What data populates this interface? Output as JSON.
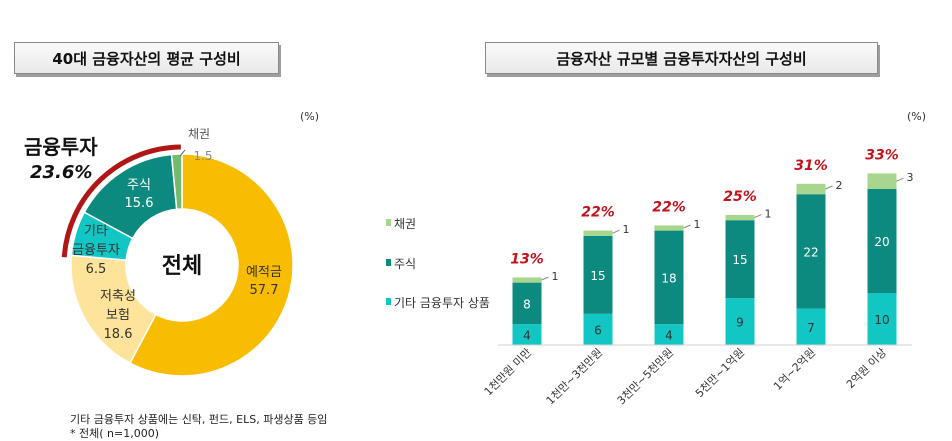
{
  "left_panel": {
    "title": "40대 금융자산의 평균 구성비",
    "unit": "(%)",
    "center_label": "전체",
    "highlight_label": "금융투자",
    "highlight_value": "23.6%",
    "notes": [
      "기타 금융투자 상품에는 신탁, 펀드, ELS, 파생상품 등임",
      "* 전체( n=1,000)"
    ]
  },
  "right_panel": {
    "title": "금융자산 규모별 금융투자자산의 구성비",
    "unit": "(%)"
  },
  "colors": {
    "deposit": "#f8bd00",
    "insurance": "#fde49a",
    "other_invest": "#12c7c3",
    "stock": "#0d8a80",
    "bond": "#74b96e",
    "bond_light": "#a9d68f",
    "highlight": "#b01616"
  },
  "chart_data": [
    {
      "type": "pie",
      "title": "40대 금융자산의 평균 구성비",
      "center_label": "전체",
      "unit": "(%)",
      "slices": [
        {
          "label": "예적금",
          "value": 57.7,
          "value_label": "57.7",
          "color": "#f8bd00"
        },
        {
          "label": "저축성 보험",
          "value": 18.6,
          "value_label": "18.6",
          "color": "#fde49a"
        },
        {
          "label": "기타 금융투자",
          "value": 6.5,
          "value_label": "6.5",
          "color": "#12c7c3"
        },
        {
          "label": "주식",
          "value": 15.6,
          "value_label": "15.6",
          "color": "#0d8a80"
        },
        {
          "label": "채권",
          "value": 1.5,
          "value_label": "1.5",
          "color": "#74b96e"
        }
      ]
    },
    {
      "type": "bar",
      "stacked": true,
      "title": "금융자산 규모별 금융투자자산의 구성비",
      "unit": "(%)",
      "categories": [
        "1천만원 미만",
        "1천만~3천만원",
        "3천만~5천만원",
        "5천만~1억원",
        "1억~2억원",
        "2억원 이상"
      ],
      "series": [
        {
          "name": "기타 금융투자 상품",
          "values": [
            4,
            6,
            4,
            9,
            7,
            10
          ],
          "color": "#12c7c3"
        },
        {
          "name": "주식",
          "values": [
            8,
            15,
            18,
            15,
            22,
            20
          ],
          "color": "#0d8a80"
        },
        {
          "name": "채권",
          "values": [
            1,
            1,
            1,
            1,
            2,
            3
          ],
          "color": "#a9d68f"
        }
      ],
      "totals": [
        "13%",
        "22%",
        "22%",
        "25%",
        "31%",
        "33%"
      ],
      "legend_position": "left"
    }
  ]
}
